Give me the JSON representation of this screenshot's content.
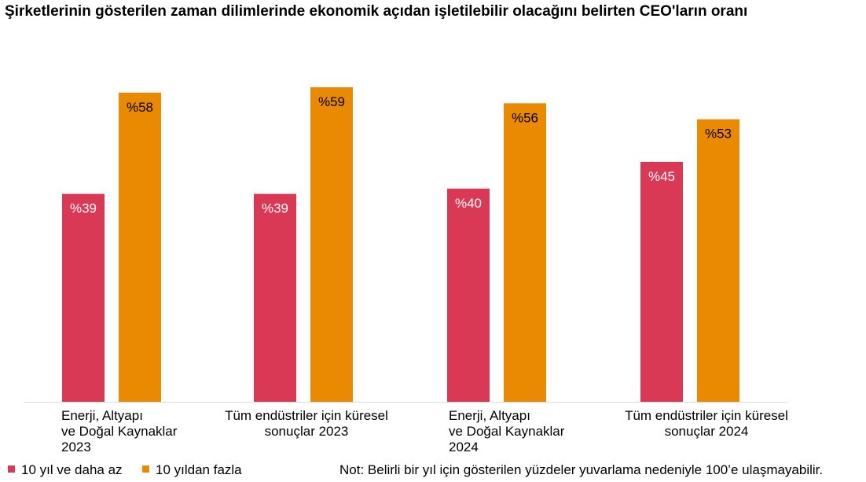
{
  "chart_data": {
    "type": "bar",
    "title": "Şirketlerinin gösterilen zaman dilimlerinde ekonomik açıdan işletilebilir olacağını belirten CEO'ların oranı",
    "categories": [
      [
        "Enerji, Altyapı",
        "ve Doğal Kaynaklar",
        "2023"
      ],
      [
        "Tüm endüstriler için küresel",
        "sonuçlar 2023"
      ],
      [
        "Enerji, Altyapı",
        "ve Doğal Kaynaklar",
        "2024"
      ],
      [
        "Tüm endüstriler için küresel",
        "sonuçlar 2024"
      ]
    ],
    "series": [
      {
        "name": "10 yıl ve daha az",
        "color": "#d93954",
        "values": [
          39,
          39,
          40,
          45
        ],
        "labels": [
          "%39",
          "%39",
          "%40",
          "%45"
        ],
        "label_color": "#ffffff"
      },
      {
        "name": "10 yıldan fazla",
        "color": "#e98a02",
        "values": [
          58,
          59,
          56,
          53
        ],
        "labels": [
          "%58",
          "%59",
          "%56",
          "%53"
        ],
        "label_color": "#000000"
      }
    ],
    "ylim": [
      0,
      60
    ],
    "grid": false,
    "legend": "bottom-left",
    "note": "Not: Belirli bir yıl için gösterilen yüzdeler yuvarlama nedeniyle 100’e ulaşmayabilir."
  }
}
